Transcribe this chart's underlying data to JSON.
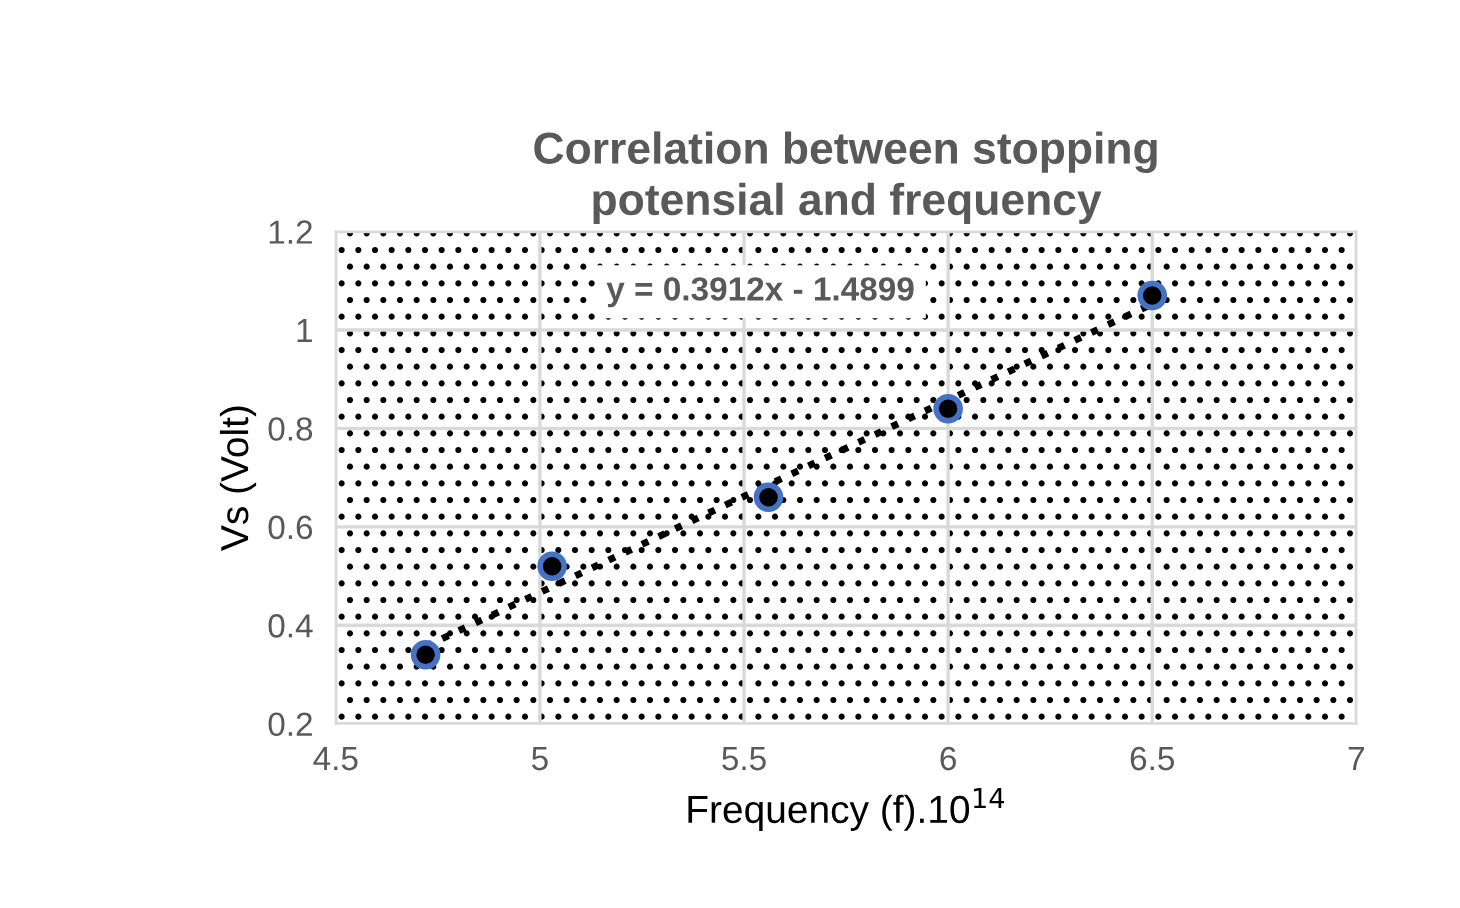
{
  "chart_data": {
    "type": "scatter",
    "title": "Correlation between stopping potensial and frequency",
    "xlabel": "Frequency (f).10$^{14}$",
    "ylabel": "Vs (Volt)",
    "x": [
      4.72,
      5.03,
      5.56,
      6.0,
      6.5
    ],
    "series": [
      {
        "color": "#000000",
        "marker": "circle",
        "values": [
          0.34,
          0.52,
          0.66,
          0.84,
          1.07
        ]
      },
      {
        "type": "line",
        "color": "#000000",
        "line_style": "dotted",
        "marker": "none",
        "x": [
          4.72,
          6.5
        ],
        "values": [
          0.357,
          1.053
        ]
      }
    ],
    "annotations": [
      "y = 0.3912x - 1.4899"
    ],
    "xlim": [
      4.5,
      7
    ],
    "xticks": [
      4.5,
      5,
      5.5,
      6,
      6.5,
      7
    ],
    "ylim": [
      0.2,
      1.2
    ],
    "yticks": [
      0.2,
      0.4,
      0.6,
      0.8,
      1,
      1.2
    ],
    "grid": true,
    "legend": false
  }
}
